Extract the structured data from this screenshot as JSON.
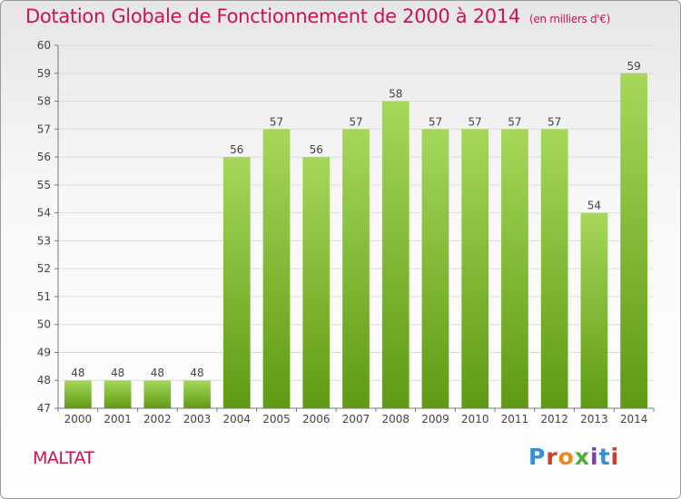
{
  "header": {
    "title": "Dotation Globale de Fonctionnement de 2000 à 2014",
    "unit": "(en milliers d'€)"
  },
  "footer": {
    "town": "MALTAT",
    "logo_text": "Proxiti"
  },
  "chart_data": {
    "type": "bar",
    "title": "Dotation Globale de Fonctionnement de 2000 à 2014",
    "subtitle": "(en milliers d'€)",
    "categories": [
      "2000",
      "2001",
      "2002",
      "2003",
      "2004",
      "2005",
      "2006",
      "2007",
      "2008",
      "2009",
      "2010",
      "2011",
      "2012",
      "2013",
      "2014"
    ],
    "values": [
      48,
      48,
      48,
      48,
      56,
      57,
      56,
      57,
      58,
      57,
      57,
      57,
      57,
      54,
      59
    ],
    "ylim": [
      47,
      60
    ],
    "yticks": [
      47,
      48,
      49,
      50,
      51,
      52,
      53,
      54,
      55,
      56,
      57,
      58,
      59,
      60
    ],
    "grid": true,
    "bar_color": "#7dbb2e",
    "bar_color_light": "#a6d75a",
    "bar_color_dark": "#5f9a14",
    "data_labels": true
  }
}
